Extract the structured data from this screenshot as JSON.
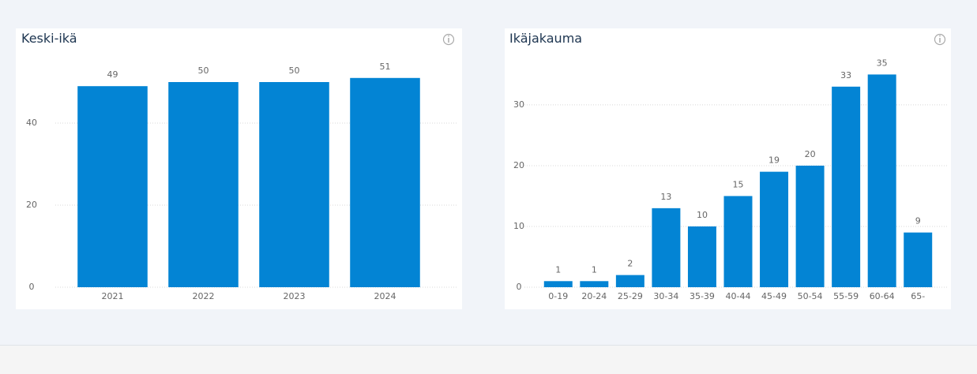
{
  "chart_data": [
    {
      "type": "bar",
      "title": "Keski-ikä",
      "categories": [
        "2021",
        "2022",
        "2023",
        "2024"
      ],
      "values": [
        49,
        50,
        50,
        51
      ],
      "color": "#0384d4",
      "ylim": [
        0,
        55
      ],
      "yticks": [
        0,
        20,
        40
      ],
      "grid": true
    },
    {
      "type": "bar",
      "title": "Ikäjakauma",
      "categories": [
        "0-19",
        "20-24",
        "25-29",
        "30-34",
        "35-39",
        "40-44",
        "45-49",
        "50-54",
        "55-59",
        "60-64",
        "65-"
      ],
      "values": [
        1,
        1,
        2,
        13,
        10,
        15,
        19,
        20,
        33,
        35,
        9
      ],
      "color": "#0384d4",
      "ylim": [
        0,
        37
      ],
      "yticks": [
        0,
        10,
        20,
        30
      ],
      "grid": true
    }
  ]
}
